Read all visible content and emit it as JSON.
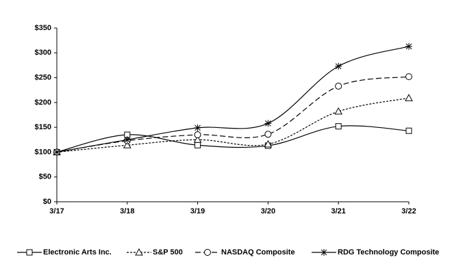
{
  "chart_data": {
    "type": "line",
    "categories": [
      "3/17",
      "3/18",
      "3/19",
      "3/20",
      "3/21",
      "3/22"
    ],
    "series": [
      {
        "name": "Electronic Arts Inc.",
        "color": "#000000",
        "dash": "solid",
        "marker": "square",
        "values": [
          100,
          135,
          114,
          113,
          152,
          143
        ]
      },
      {
        "name": "S&P 500",
        "color": "#000000",
        "dash": "short",
        "marker": "triangle",
        "values": [
          100,
          114,
          125,
          116,
          182,
          209
        ]
      },
      {
        "name": "NASDAQ Composite",
        "color": "#000000",
        "dash": "long",
        "marker": "circle",
        "values": [
          100,
          123,
          135,
          136,
          233,
          252
        ]
      },
      {
        "name": "RDG Technology Composite",
        "color": "#000000",
        "dash": "solid",
        "marker": "asterisk",
        "values": [
          100,
          125,
          149,
          158,
          273,
          313
        ]
      }
    ],
    "ylim": [
      0,
      350
    ],
    "yticks": [
      {
        "value": 0,
        "label": "$0"
      },
      {
        "value": 50,
        "label": "$50"
      },
      {
        "value": 100,
        "label": "$100"
      },
      {
        "value": 150,
        "label": "$150"
      },
      {
        "value": 200,
        "label": "$200"
      },
      {
        "value": 250,
        "label": "$250"
      },
      {
        "value": 300,
        "label": "$300"
      },
      {
        "value": 350,
        "label": "$350"
      }
    ],
    "grid": false,
    "legend": "bottom"
  }
}
